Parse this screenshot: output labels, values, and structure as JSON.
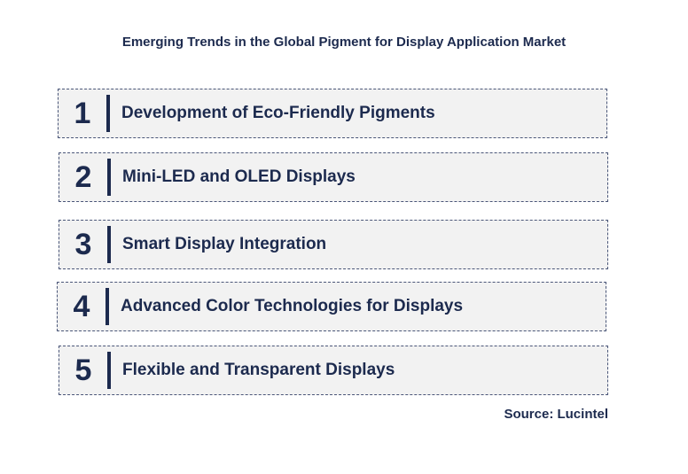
{
  "title": "Emerging Trends in the Global Pigment for Display Application Market",
  "trends": [
    {
      "number": "1",
      "label": "Development of Eco-Friendly Pigments"
    },
    {
      "number": "2",
      "label": "Mini-LED and OLED Displays"
    },
    {
      "number": "3",
      "label": "Smart Display Integration"
    },
    {
      "number": "4",
      "label": "Advanced Color Technologies for Displays"
    },
    {
      "number": "5",
      "label": "Flexible and Transparent Displays"
    }
  ],
  "source": "Source: Lucintel",
  "colors": {
    "text": "#1c2a4e",
    "box_fill": "#f2f2f2",
    "border": "#4a5678"
  }
}
